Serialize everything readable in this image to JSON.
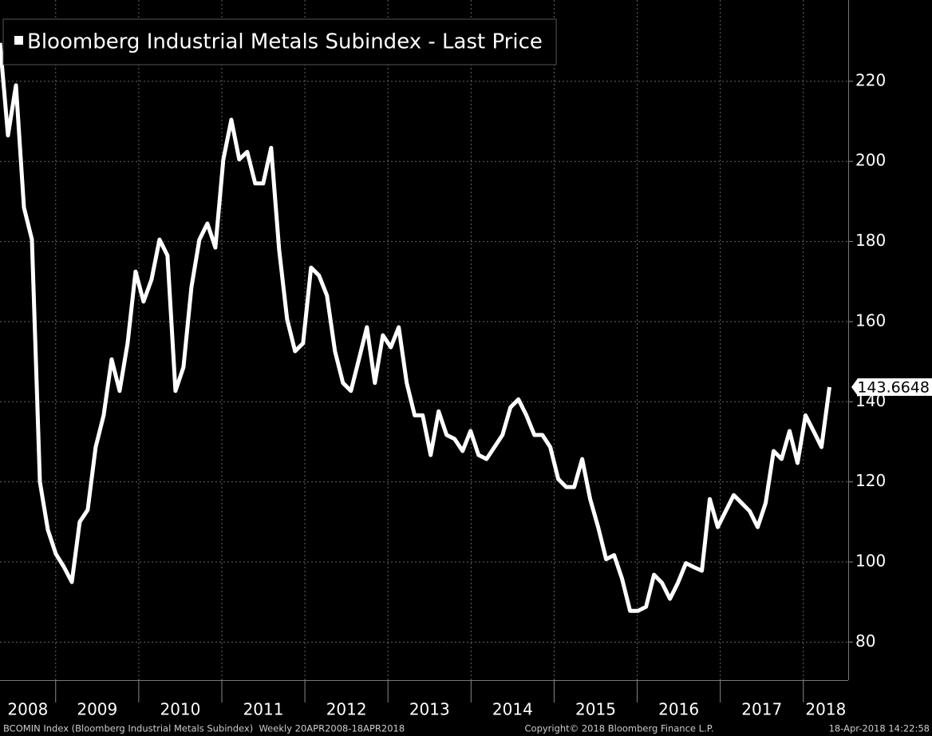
{
  "chart_data": {
    "type": "line",
    "legend": "Bloomberg Industrial Metals Subindex - Last Price",
    "footer_left": "BCOMIN Index (Bloomberg Industrial Metals Subindex)  Weekly 20APR2008-18APR2018",
    "footer_center": "Copyright© 2018 Bloomberg Finance L.P.",
    "footer_right": "18-Apr-2018 14:22:58",
    "x_labels": [
      "2008",
      "2009",
      "2010",
      "2011",
      "2012",
      "2013",
      "2014",
      "2015",
      "2016",
      "2017",
      "2018"
    ],
    "xlim": [
      2008.33,
      2018.54
    ],
    "xticks": [
      2009,
      2010,
      2011,
      2012,
      2013,
      2014,
      2015,
      2016,
      2017,
      2018
    ],
    "ylim": [
      70.5,
      240.3
    ],
    "yticks": [
      80,
      100,
      120,
      140,
      160,
      180,
      200,
      220
    ],
    "grid": true,
    "legend_position": "upper left",
    "series": [
      {
        "name": "Bloomberg Industrial Metals Subindex - Last Price",
        "color": "#ffffff",
        "last_label": "143.6648",
        "x": [
          2008.33,
          2008.426,
          2008.522,
          2008.618,
          2008.714,
          2008.81,
          2008.906,
          2009.002,
          2009.098,
          2009.194,
          2009.29,
          2009.386,
          2009.482,
          2009.578,
          2009.674,
          2009.77,
          2009.866,
          2009.962,
          2010.058,
          2010.154,
          2010.25,
          2010.346,
          2010.442,
          2010.538,
          2010.634,
          2010.73,
          2010.826,
          2010.922,
          2011.018,
          2011.114,
          2011.21,
          2011.306,
          2011.402,
          2011.498,
          2011.594,
          2011.69,
          2011.786,
          2011.882,
          2011.978,
          2012.074,
          2012.17,
          2012.266,
          2012.362,
          2012.458,
          2012.554,
          2012.65,
          2012.746,
          2012.842,
          2012.938,
          2013.034,
          2013.13,
          2013.226,
          2013.322,
          2013.418,
          2013.514,
          2013.61,
          2013.706,
          2013.802,
          2013.898,
          2013.994,
          2014.09,
          2014.186,
          2014.282,
          2014.378,
          2014.474,
          2014.57,
          2014.666,
          2014.762,
          2014.858,
          2014.954,
          2015.05,
          2015.146,
          2015.242,
          2015.338,
          2015.434,
          2015.53,
          2015.626,
          2015.722,
          2015.818,
          2015.914,
          2016.01,
          2016.106,
          2016.202,
          2016.298,
          2016.394,
          2016.49,
          2016.586,
          2016.682,
          2016.778,
          2016.874,
          2016.97,
          2017.066,
          2017.162,
          2017.258,
          2017.354,
          2017.45,
          2017.546,
          2017.642,
          2017.738,
          2017.834,
          2017.93,
          2018.026,
          2018.122,
          2018.218,
          2018.314
        ],
        "values": [
          229.6,
          206.5,
          219,
          188.5,
          180.5,
          120,
          108,
          102,
          98.8,
          95,
          110,
          113,
          128.7,
          136.6,
          150.6,
          142.7,
          154.6,
          172.5,
          165,
          170.5,
          180.5,
          176.5,
          142.7,
          148.6,
          168.6,
          180.5,
          184.5,
          178.5,
          200.5,
          210.4,
          200.5,
          202.4,
          194.5,
          194.5,
          203.4,
          178,
          160.6,
          152.6,
          154.6,
          173.5,
          171.5,
          166.5,
          152.6,
          144.7,
          142.7,
          150.6,
          158.6,
          144.7,
          156.6,
          153.6,
          158.6,
          144.7,
          136.6,
          136.6,
          126.7,
          137.6,
          131.7,
          130.7,
          127.7,
          132.7,
          126.7,
          125.7,
          128.7,
          131.7,
          138.6,
          140.6,
          136.6,
          131.7,
          131.7,
          128.7,
          120.7,
          118.7,
          118.7,
          125.7,
          115.7,
          108.7,
          100.7,
          101.7,
          95.8,
          87.8,
          87.8,
          88.8,
          96.8,
          94.8,
          90.8,
          94.8,
          99.7,
          98.7,
          97.8,
          115.7,
          108.7,
          112.7,
          116.7,
          114.7,
          112.7,
          108.7,
          114.7,
          127.7,
          125.7,
          132.7,
          124.7,
          136.6,
          132.7,
          128.7,
          143.6648
        ]
      }
    ]
  }
}
